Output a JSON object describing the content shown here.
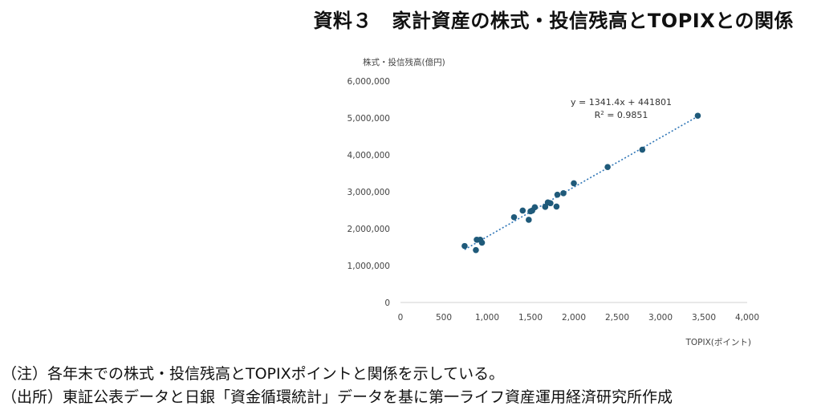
{
  "title": "資料３　家計資産の株式・投信残高とTOPIXとの関係",
  "notes": [
    "（注）各年末での株式・投信残高とTOPIXポイントと関係を示している。",
    "（出所）東証公表データと日銀「資金循環統計」データを基に第一ライフ資産運用経済研究所作成"
  ],
  "chart_data": {
    "type": "scatter",
    "ylabel": "株式・投信残高(億円)",
    "xlabel": "TOPIX(ポイント)",
    "xlim": [
      0,
      4000
    ],
    "ylim": [
      0,
      6000000
    ],
    "x_ticks": [
      0,
      500,
      1000,
      1500,
      2000,
      2500,
      3000,
      3500,
      4000
    ],
    "x_tick_labels": [
      "0",
      "500",
      "1,000",
      "1,500",
      "2,000",
      "2,500",
      "3,000",
      "3,500",
      "4,000"
    ],
    "y_ticks": [
      0,
      1000000,
      2000000,
      3000000,
      4000000,
      5000000,
      6000000
    ],
    "y_tick_labels": [
      "0",
      "1,000,000",
      "2,000,000",
      "3,000,000",
      "4,000,000",
      "5,000,000",
      "6,000,000"
    ],
    "grid": false,
    "point_color": "#1f5a7a",
    "trend_color": "#2e75b6",
    "points": [
      {
        "x": 740,
        "y": 1530000
      },
      {
        "x": 870,
        "y": 1420000
      },
      {
        "x": 880,
        "y": 1700000
      },
      {
        "x": 920,
        "y": 1700000
      },
      {
        "x": 940,
        "y": 1620000
      },
      {
        "x": 1310,
        "y": 2310000
      },
      {
        "x": 1410,
        "y": 2490000
      },
      {
        "x": 1480,
        "y": 2240000
      },
      {
        "x": 1500,
        "y": 2470000
      },
      {
        "x": 1520,
        "y": 2490000
      },
      {
        "x": 1550,
        "y": 2580000
      },
      {
        "x": 1670,
        "y": 2590000
      },
      {
        "x": 1700,
        "y": 2710000
      },
      {
        "x": 1730,
        "y": 2690000
      },
      {
        "x": 1800,
        "y": 2600000
      },
      {
        "x": 1810,
        "y": 2920000
      },
      {
        "x": 1880,
        "y": 2960000
      },
      {
        "x": 2000,
        "y": 3230000
      },
      {
        "x": 2390,
        "y": 3670000
      },
      {
        "x": 2790,
        "y": 4140000
      },
      {
        "x": 3430,
        "y": 5060000
      }
    ],
    "trendline": {
      "slope": 1341.4,
      "intercept": 441801,
      "x_range": [
        740,
        3430
      ],
      "equation": "y = 1341.4x + 441801",
      "r2_prefix": "R",
      "r2_exp": "2",
      "r2_suffix": " = 0.9851"
    }
  }
}
